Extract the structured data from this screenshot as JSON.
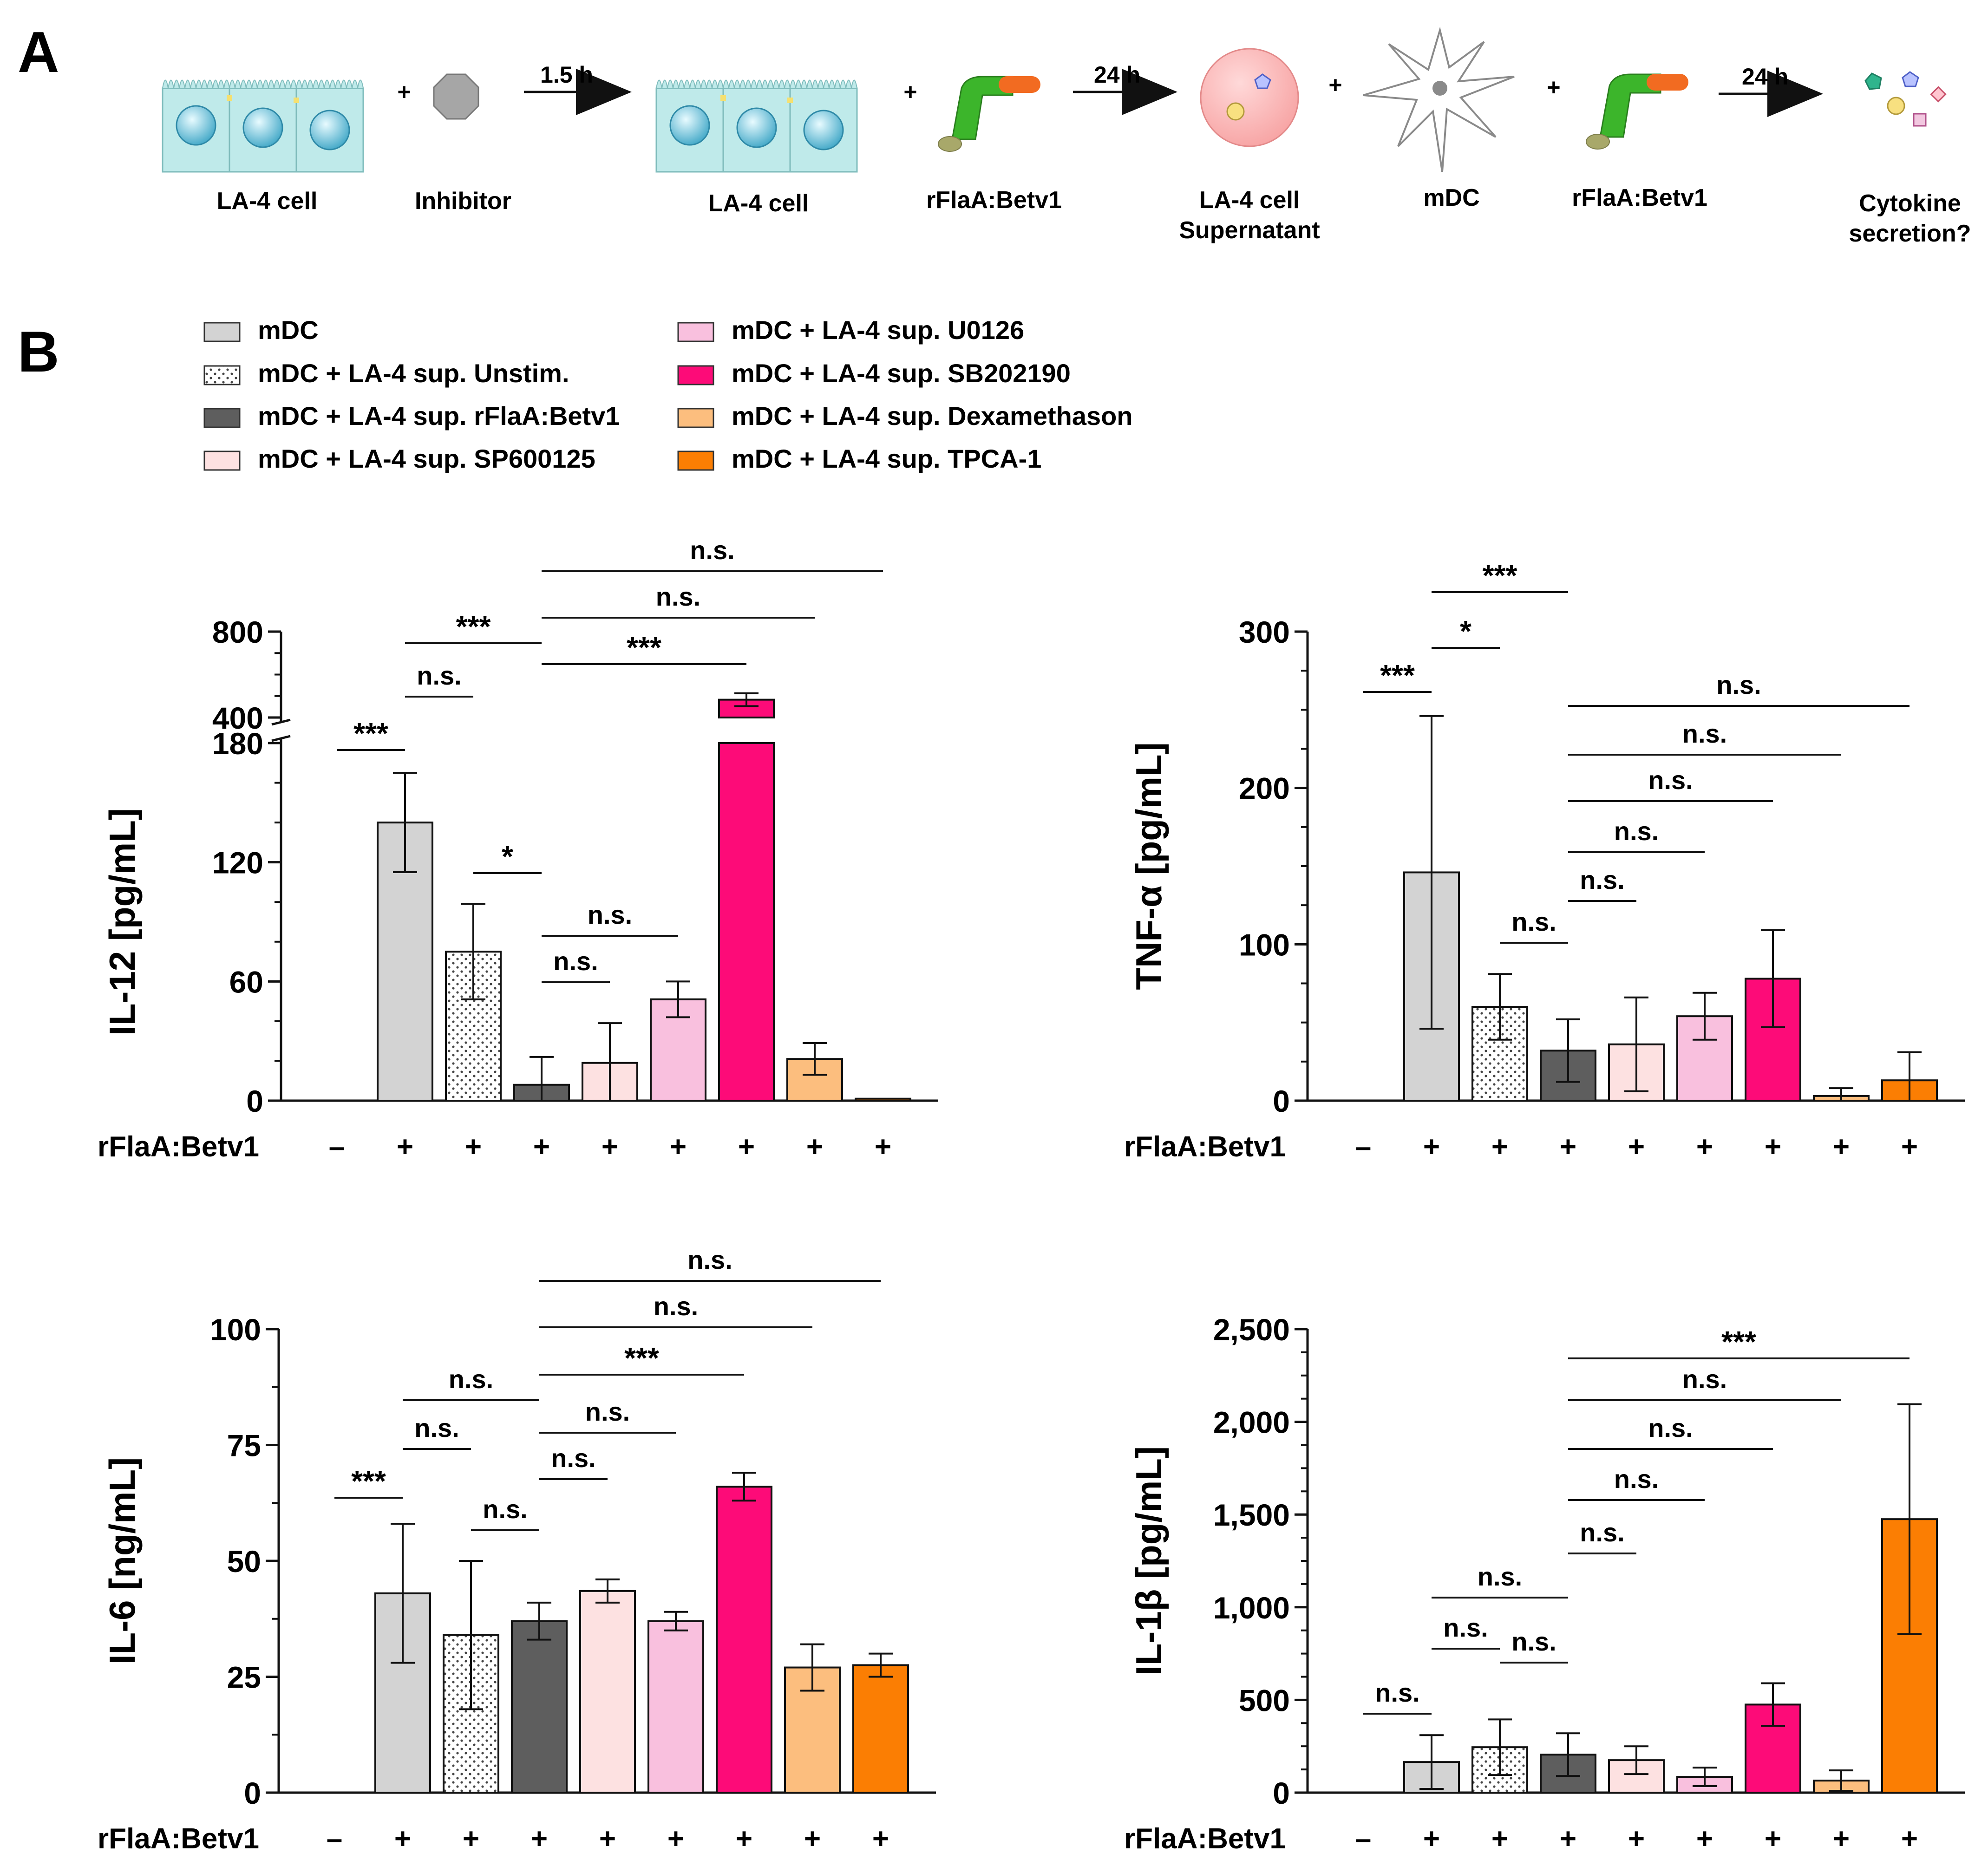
{
  "panel_a": {
    "label": "A",
    "items": [
      {
        "name": "la4-cell-1",
        "label": "LA-4 cell"
      },
      {
        "name": "inhibitor",
        "label": "Inhibitor"
      },
      {
        "name": "la4-cell-2",
        "label": "LA-4 cell"
      },
      {
        "name": "rflaa-1",
        "label": "rFlaA:Betv1"
      },
      {
        "name": "supernatant",
        "label": "LA-4 cell",
        "label2": "Supernatant"
      },
      {
        "name": "mdc",
        "label": "mDC"
      },
      {
        "name": "rflaa-2",
        "label": "rFlaA:Betv1"
      },
      {
        "name": "cytokine",
        "label": "Cytokine",
        "label2": "secretion?"
      }
    ],
    "plus": "+",
    "arrows": [
      "1.5 h",
      "24 h",
      "24 h"
    ]
  },
  "panel_b": {
    "label": "B",
    "legend": [
      {
        "label": "mDC",
        "color": "#d3d3d3"
      },
      {
        "label": "mDC + LA-4 sup. Unstim.",
        "color": "#ffffff"
      },
      {
        "label": "mDC + LA-4 sup. rFlaA:Betv1",
        "color": "#5e5e5e"
      },
      {
        "label": "mDC + LA-4 sup. SP600125",
        "color": "#fde1e1"
      },
      {
        "label": "mDC + LA-4 sup. U0126",
        "color": "#f9c0de"
      },
      {
        "label": "mDC + LA-4 sup. SB202190",
        "color": "#fd0b78"
      },
      {
        "label": "mDC + LA-4 sup. Dexamethason",
        "color": "#fcbe7e"
      },
      {
        "label": "mDC + LA-4 sup. TPCA-1",
        "color": "#fb7e03"
      }
    ]
  },
  "xrow_label": "rFlaA:Betv1",
  "xrow_signs": [
    "–",
    "+",
    "+",
    "+",
    "+",
    "+",
    "+",
    "+",
    "+"
  ],
  "chart_data": [
    {
      "type": "bar",
      "title": "",
      "ylabel": "IL-12 [pg/mL]",
      "broken_axis": {
        "lower": [
          0,
          180
        ],
        "upper": [
          400,
          800
        ]
      },
      "yticks_lower": [
        "0",
        "60",
        "120",
        "180"
      ],
      "yticks_upper": [
        "400",
        "800"
      ],
      "values": [
        0,
        140,
        75,
        8,
        19,
        51,
        483,
        21,
        1
      ],
      "errors": [
        0,
        25,
        24,
        14,
        20,
        9,
        30,
        8,
        0
      ],
      "significance": [
        {
          "from": 0,
          "to": 1,
          "label": "***"
        },
        {
          "from": 1,
          "to": 2,
          "label": "n.s."
        },
        {
          "from": 1,
          "to": 3,
          "label": "***"
        },
        {
          "from": 2,
          "to": 3,
          "label": "*"
        },
        {
          "from": 3,
          "to": 4,
          "label": "n.s."
        },
        {
          "from": 3,
          "to": 5,
          "label": "n.s."
        },
        {
          "from": 3,
          "to": 6,
          "label": "***"
        },
        {
          "from": 3,
          "to": 7,
          "label": "n.s."
        },
        {
          "from": 3,
          "to": 8,
          "label": "n.s."
        }
      ]
    },
    {
      "type": "bar",
      "title": "",
      "ylabel": "TNF-α [pg/mL]",
      "ylim": [
        0,
        300
      ],
      "yticks": [
        "0",
        "100",
        "200",
        "300"
      ],
      "values": [
        0,
        146,
        60,
        32,
        36,
        54,
        78,
        3,
        13
      ],
      "errors": [
        0,
        100,
        21,
        20,
        30,
        15,
        31,
        5,
        18
      ],
      "significance": [
        {
          "from": 0,
          "to": 1,
          "label": "***"
        },
        {
          "from": 1,
          "to": 2,
          "label": "*"
        },
        {
          "from": 1,
          "to": 3,
          "label": "***"
        },
        {
          "from": 2,
          "to": 3,
          "label": "n.s."
        },
        {
          "from": 3,
          "to": 4,
          "label": "n.s."
        },
        {
          "from": 3,
          "to": 5,
          "label": "n.s."
        },
        {
          "from": 3,
          "to": 6,
          "label": "n.s."
        },
        {
          "from": 3,
          "to": 7,
          "label": "n.s."
        },
        {
          "from": 3,
          "to": 8,
          "label": "n.s."
        }
      ]
    },
    {
      "type": "bar",
      "title": "",
      "ylabel": "IL-6 [ng/mL]",
      "ylim": [
        0,
        100
      ],
      "yticks": [
        "0",
        "25",
        "50",
        "75",
        "100"
      ],
      "values": [
        0,
        43,
        34,
        37,
        43.5,
        37,
        66,
        27,
        27.5
      ],
      "errors": [
        0,
        15,
        16,
        4,
        2.5,
        2,
        3,
        5,
        2.5
      ],
      "significance": [
        {
          "from": 0,
          "to": 1,
          "label": "***"
        },
        {
          "from": 1,
          "to": 2,
          "label": "n.s."
        },
        {
          "from": 1,
          "to": 3,
          "label": "n.s."
        },
        {
          "from": 2,
          "to": 3,
          "label": "n.s."
        },
        {
          "from": 3,
          "to": 4,
          "label": "n.s."
        },
        {
          "from": 3,
          "to": 5,
          "label": "n.s."
        },
        {
          "from": 3,
          "to": 6,
          "label": "***"
        },
        {
          "from": 3,
          "to": 7,
          "label": "n.s."
        },
        {
          "from": 3,
          "to": 8,
          "label": "n.s."
        }
      ]
    },
    {
      "type": "bar",
      "title": "",
      "ylabel": "IL-1β [pg/mL]",
      "ylim": [
        0,
        2500
      ],
      "yticks": [
        "0",
        "500",
        "1,000",
        "1,500",
        "2,000",
        "2,500"
      ],
      "values": [
        0,
        165,
        245,
        205,
        175,
        85,
        475,
        65,
        1475
      ],
      "errors": [
        0,
        145,
        150,
        115,
        75,
        50,
        115,
        55,
        620
      ],
      "significance": [
        {
          "from": 0,
          "to": 1,
          "label": "n.s."
        },
        {
          "from": 1,
          "to": 2,
          "label": "n.s."
        },
        {
          "from": 1,
          "to": 3,
          "label": "n.s."
        },
        {
          "from": 2,
          "to": 3,
          "label": "n.s."
        },
        {
          "from": 3,
          "to": 4,
          "label": "n.s."
        },
        {
          "from": 3,
          "to": 5,
          "label": "n.s."
        },
        {
          "from": 3,
          "to": 6,
          "label": "n.s."
        },
        {
          "from": 3,
          "to": 7,
          "label": "n.s."
        },
        {
          "from": 3,
          "to": 8,
          "label": "***"
        }
      ]
    }
  ]
}
